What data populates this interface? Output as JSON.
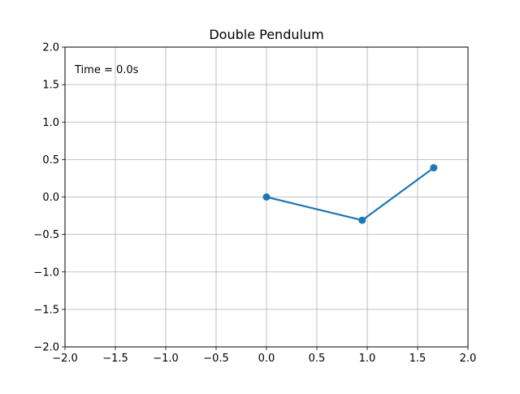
{
  "chart_data": {
    "type": "line",
    "title": "Double Pendulum",
    "xlabel": "",
    "ylabel": "",
    "xlim": [
      -2.0,
      2.0
    ],
    "ylim": [
      -2.0,
      2.0
    ],
    "grid": true,
    "x_ticks": [
      -2.0,
      -1.5,
      -1.0,
      -0.5,
      0.0,
      0.5,
      1.0,
      1.5,
      2.0
    ],
    "y_ticks": [
      -2.0,
      -1.5,
      -1.0,
      -0.5,
      0.0,
      0.5,
      1.0,
      1.5,
      2.0
    ],
    "x_tick_labels": [
      "−2.0",
      "−1.5",
      "−1.0",
      "−0.5",
      "0.0",
      "0.5",
      "1.0",
      "1.5",
      "2.0"
    ],
    "y_tick_labels": [
      "−2.0",
      "−1.5",
      "−1.0",
      "−0.5",
      "0.0",
      "0.5",
      "1.0",
      "1.5",
      "2.0"
    ],
    "series": [
      {
        "color": "#1f77b4",
        "marker": "circle",
        "x": [
          0.0,
          0.95,
          1.66
        ],
        "y": [
          0.0,
          -0.31,
          0.39
        ]
      }
    ],
    "annotations": [
      {
        "text": "Time = 0.0s",
        "position": "top-left"
      }
    ]
  }
}
